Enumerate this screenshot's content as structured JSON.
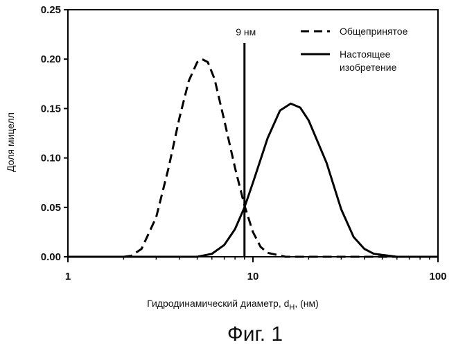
{
  "chart_data": {
    "type": "line",
    "title": "",
    "xlabel": "Гидродинамический диаметр, d",
    "xlabel_sub": "H",
    "xlabel_suffix": ", (нм)",
    "ylabel": "Доля мицелл",
    "x_scale": "log",
    "xlim": [
      1,
      100
    ],
    "ylim": [
      0,
      0.25
    ],
    "x_ticks": [
      1,
      10,
      100
    ],
    "x_tick_labels": [
      "1",
      "10",
      "100"
    ],
    "y_ticks": [
      0,
      0.05,
      0.1,
      0.15,
      0.2,
      0.25
    ],
    "y_tick_labels": [
      "0.00",
      "0.05",
      "0.10",
      "0.15",
      "0.20",
      "0.25"
    ],
    "grid": false,
    "legend_position": "top-right",
    "series": [
      {
        "name": "Общепринятое",
        "style": "dashed",
        "x": [
          1,
          2,
          2.2,
          2.5,
          3,
          3.5,
          4,
          4.5,
          5,
          5.3,
          5.7,
          6.2,
          7,
          8,
          9,
          10,
          11,
          12,
          15,
          20,
          100
        ],
        "y": [
          0,
          0,
          0.001,
          0.008,
          0.04,
          0.09,
          0.14,
          0.178,
          0.197,
          0.2,
          0.197,
          0.18,
          0.138,
          0.09,
          0.052,
          0.025,
          0.01,
          0.004,
          0,
          0,
          0
        ]
      },
      {
        "name": "Настоящее изобретение",
        "style": "solid",
        "x": [
          1,
          5,
          6,
          7,
          8,
          9,
          10,
          12,
          14,
          16,
          18,
          20,
          25,
          30,
          35,
          40,
          45,
          60,
          100
        ],
        "y": [
          0,
          0,
          0.003,
          0.012,
          0.028,
          0.05,
          0.075,
          0.12,
          0.148,
          0.155,
          0.151,
          0.138,
          0.095,
          0.048,
          0.02,
          0.008,
          0.003,
          0,
          0
        ]
      }
    ],
    "annotations": [
      {
        "type": "vline",
        "x": 9,
        "label": "9 нм"
      }
    ]
  },
  "caption": "Фиг. 1"
}
